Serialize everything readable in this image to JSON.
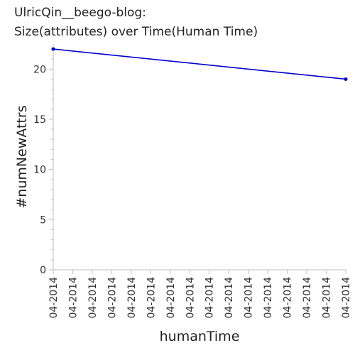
{
  "chart_data": {
    "type": "line",
    "title": "UlricQin__beego-blog:",
    "subtitle": "Size(attributes) over Time(Human Time)",
    "xlabel": "humanTime",
    "ylabel": "#numNewAttrs",
    "x_tick_labels": [
      "04-2014",
      "04-2014",
      "04-2014",
      "04-2014",
      "04-2014",
      "04-2014",
      "04-2014",
      "04-2014",
      "04-2014",
      "04-2014",
      "04-2014",
      "04-2014",
      "04-2014",
      "04-2014",
      "04-2014",
      "04-2014"
    ],
    "y_ticks": [
      0,
      5,
      10,
      15,
      20
    ],
    "ylim": [
      0,
      22.5
    ],
    "grid": false,
    "series": [
      {
        "color": "#0000cc",
        "points": [
          {
            "x": 0,
            "y": 22
          },
          {
            "x": 15,
            "y": 19
          }
        ]
      }
    ],
    "xlim": [
      0,
      15
    ]
  }
}
